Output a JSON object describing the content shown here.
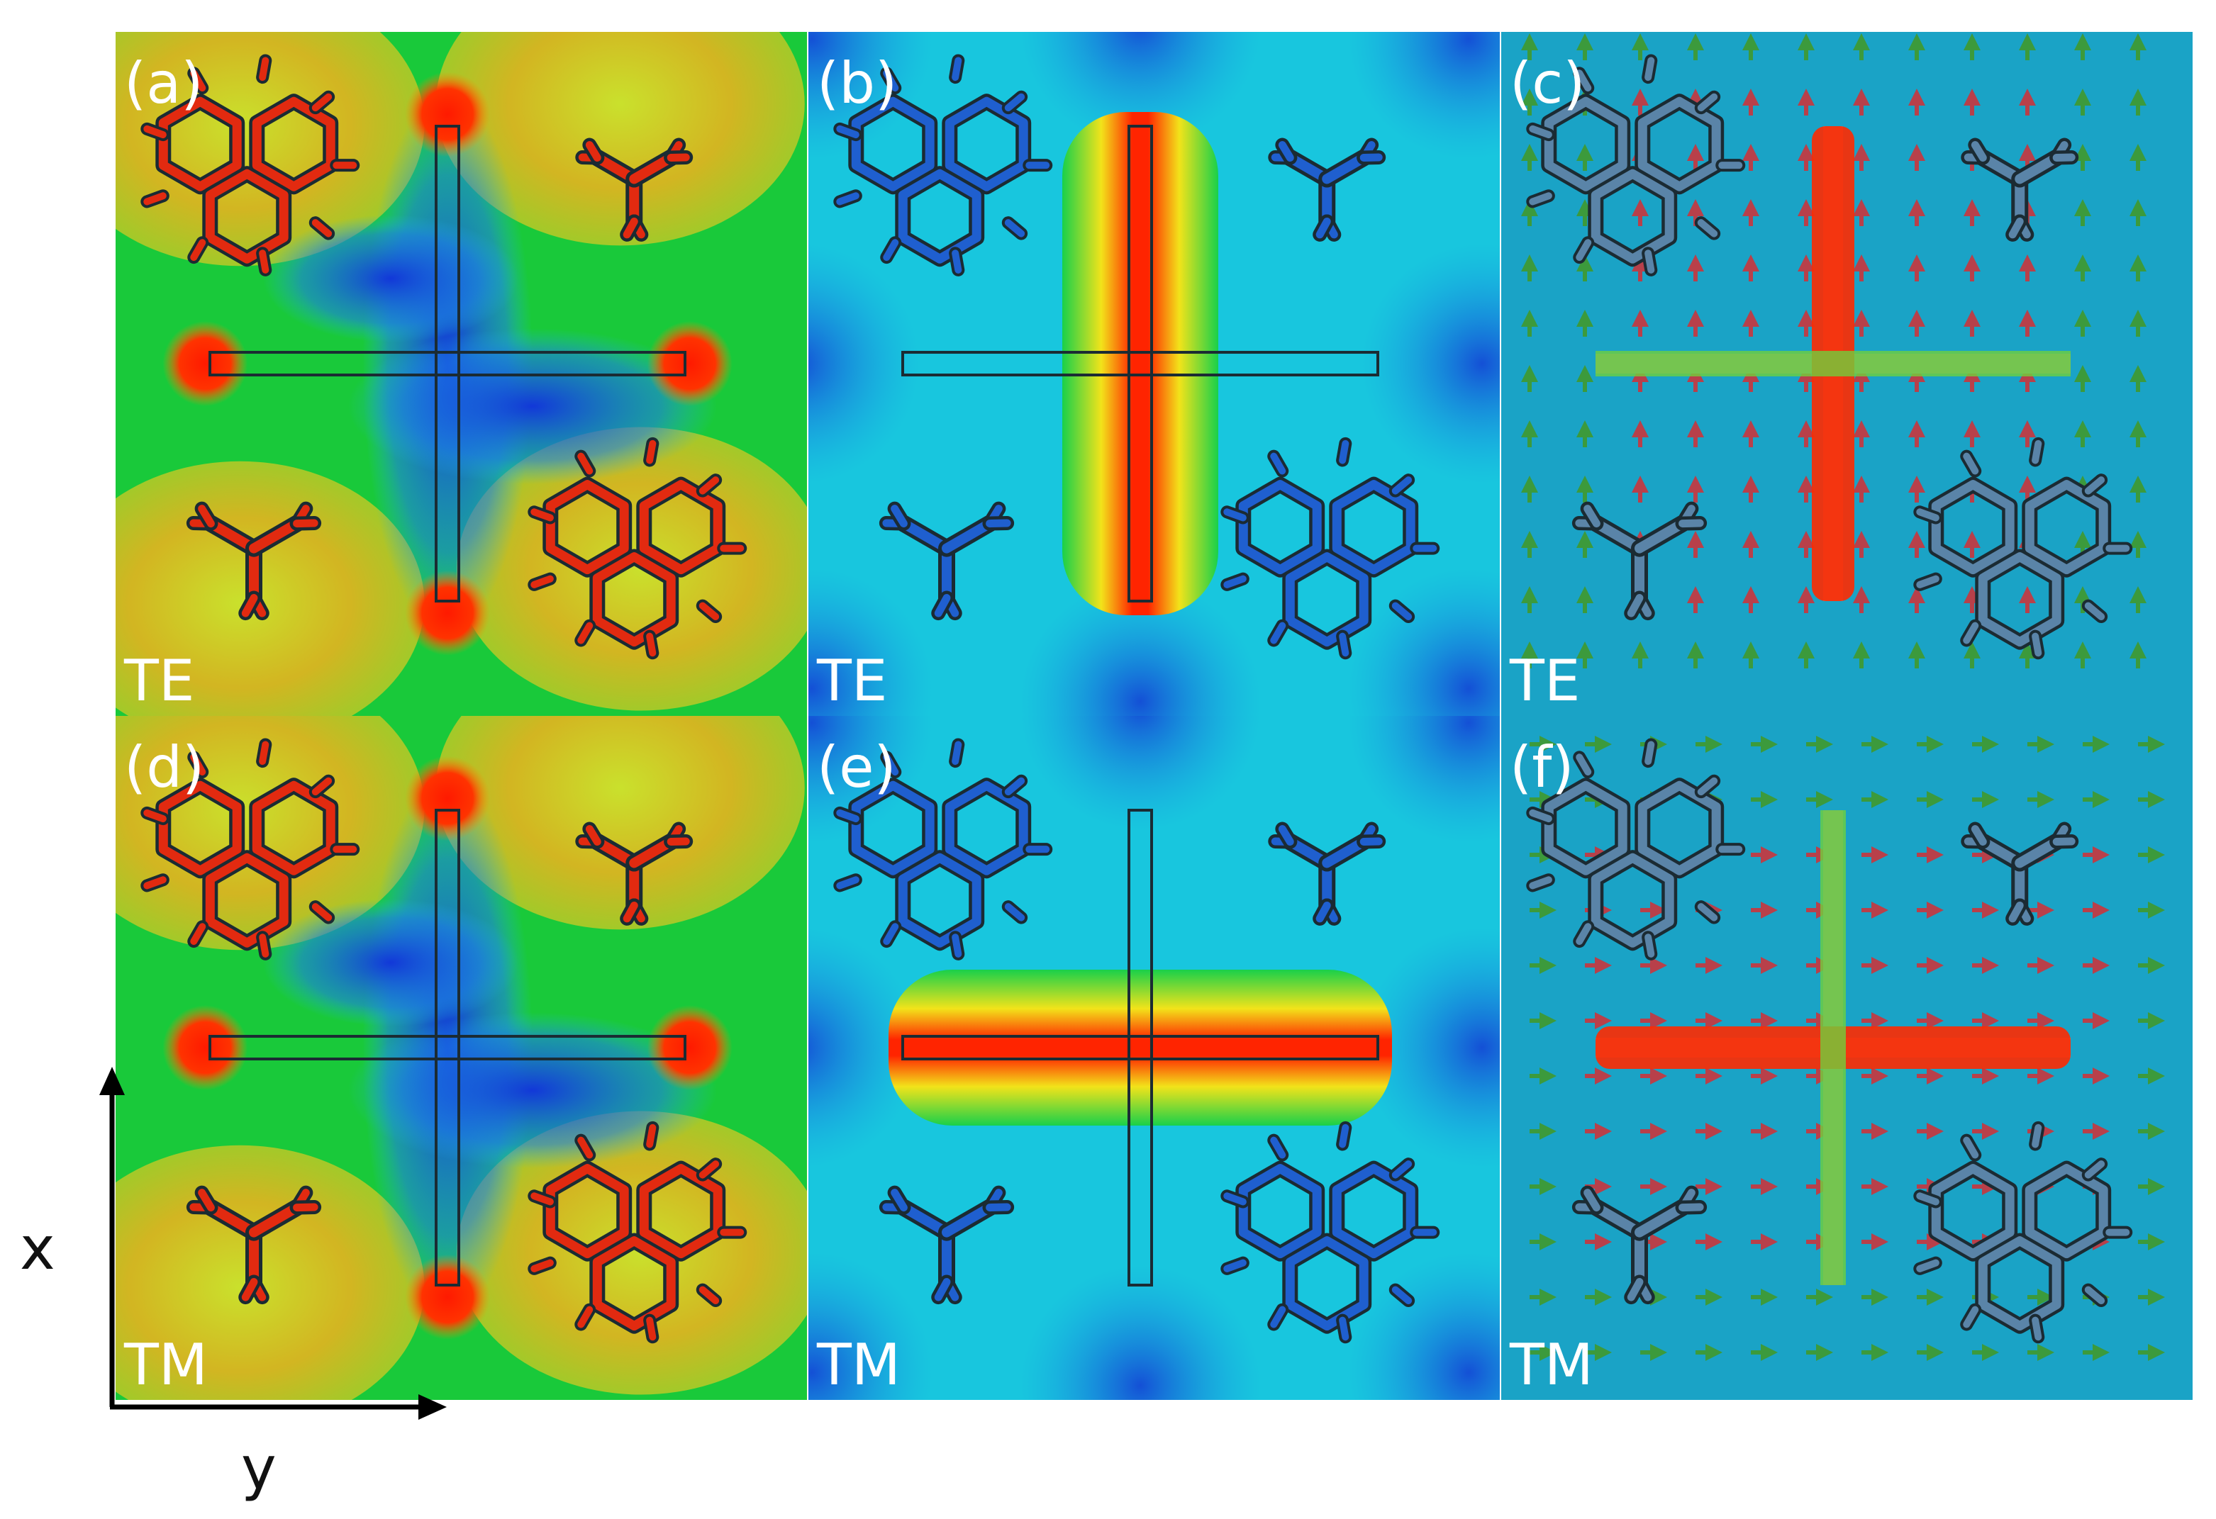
{
  "figure": {
    "panels": [
      {
        "id": "a",
        "label": "(a)",
        "mode": "TE",
        "kind": "e-field",
        "hot_arm": "both",
        "bg": "#19c93a"
      },
      {
        "id": "b",
        "label": "(b)",
        "mode": "TE",
        "kind": "h-field",
        "hot_arm": "vertical",
        "bg": "#18c6de"
      },
      {
        "id": "c",
        "label": "(c)",
        "mode": "TE",
        "kind": "current",
        "hot_arm": "vertical",
        "bg": "#1aa3c6"
      },
      {
        "id": "d",
        "label": "(d)",
        "mode": "TM",
        "kind": "e-field",
        "hot_arm": "both",
        "bg": "#19c93a"
      },
      {
        "id": "e",
        "label": "(e)",
        "mode": "TM",
        "kind": "h-field",
        "hot_arm": "horizontal",
        "bg": "#18c6de"
      },
      {
        "id": "f",
        "label": "(f)",
        "mode": "TM",
        "kind": "current",
        "hot_arm": "horizontal",
        "bg": "#1aa3c6"
      }
    ],
    "axes": {
      "vertical_label": "x",
      "horizontal_label": "y"
    },
    "colors": {
      "hot": "#ff2a00",
      "warm": "#f5d21a",
      "cool": "#1544d8",
      "deep": "#0a1fb8",
      "outline": "#1b2b33"
    }
  }
}
